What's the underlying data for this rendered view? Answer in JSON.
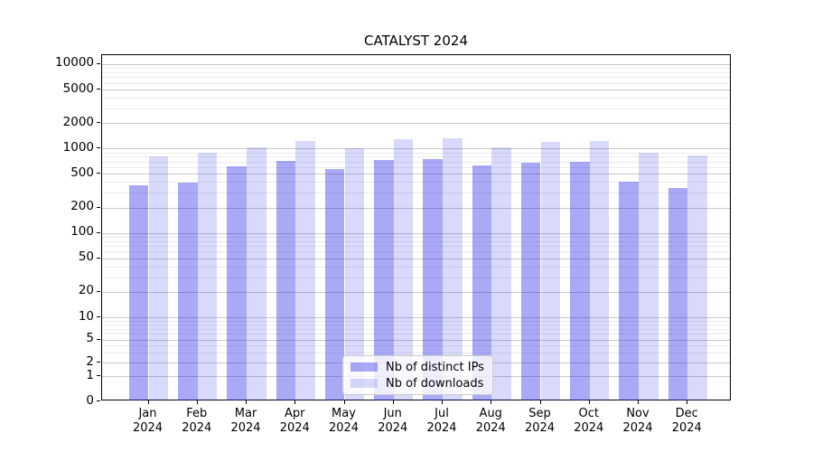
{
  "title": "CATALYST 2024",
  "chart_data": {
    "type": "bar",
    "title": "CATALYST 2024",
    "subtitle": "",
    "xlabel": "",
    "ylabel": "",
    "yscale": "symlog",
    "grid": true,
    "legend_position": "lower center",
    "year": "2024",
    "months": [
      "Jan",
      "Feb",
      "Mar",
      "Apr",
      "May",
      "Jun",
      "Jul",
      "Aug",
      "Sep",
      "Oct",
      "Nov",
      "Dec"
    ],
    "categories": [
      "Jan 2024",
      "Feb 2024",
      "Mar 2024",
      "Apr 2024",
      "May 2024",
      "Jun 2024",
      "Jul 2024",
      "Aug 2024",
      "Sep 2024",
      "Oct 2024",
      "Nov 2024",
      "Dec 2024"
    ],
    "y_ticks": [
      0,
      1,
      2,
      5,
      10,
      20,
      50,
      100,
      200,
      500,
      1000,
      2000,
      5000,
      10000
    ],
    "ylim": [
      0,
      13000
    ],
    "series": [
      {
        "name": "Nb of distinct IPs",
        "color": "rgba(30,30,230,0.38)",
        "values": [
          365,
          395,
          610,
          713,
          570,
          730,
          755,
          630,
          680,
          700,
          400,
          338
        ]
      },
      {
        "name": "Nb of downloads",
        "color": "rgba(30,30,230,0.17)",
        "values": [
          810,
          890,
          1030,
          1220,
          1000,
          1280,
          1320,
          1030,
          1200,
          1235,
          895,
          820
        ]
      }
    ],
    "colors": {
      "distinct_ips_rendered": "#a9a9f4",
      "downloads_rendered": "#dadaf8",
      "grid_major": "#c9c9c9",
      "grid_minor": "#ebebeb",
      "axis": "#000000"
    }
  }
}
